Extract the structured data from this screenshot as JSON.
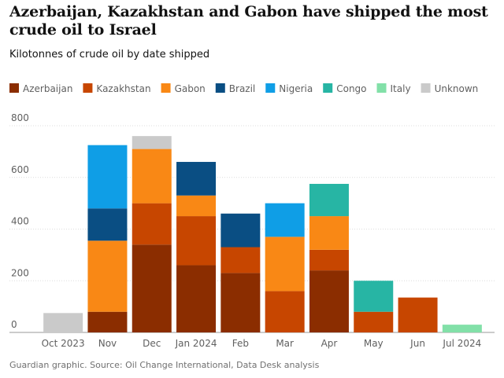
{
  "title": "Azerbaijan, Kazakhstan and Gabon have shipped the most crude oil to Israel",
  "subtitle": "Kilotonnes of crude oil by date shipped",
  "footer": "Guardian graphic. Source: Oil Change International, Data Desk analysis",
  "chart_data": {
    "type": "bar",
    "stacked": true,
    "categories": [
      "Oct 2023",
      "Nov",
      "Dec",
      "Jan 2024",
      "Feb",
      "Mar",
      "Apr",
      "May",
      "Jun",
      "Jul 2024"
    ],
    "ylim": [
      0,
      800
    ],
    "yticks": [
      0,
      200,
      400,
      600,
      800
    ],
    "grid": true,
    "legend_position": "top",
    "series": [
      {
        "name": "Azerbaijan",
        "color": "#8b2d00",
        "values": [
          0,
          80,
          340,
          260,
          230,
          0,
          240,
          0,
          0,
          0
        ]
      },
      {
        "name": "Kazakhstan",
        "color": "#c74600",
        "values": [
          0,
          0,
          160,
          190,
          100,
          160,
          80,
          80,
          135,
          0
        ]
      },
      {
        "name": "Gabon",
        "color": "#f98815",
        "values": [
          0,
          275,
          210,
          80,
          0,
          210,
          130,
          0,
          0,
          0
        ]
      },
      {
        "name": "Brazil",
        "color": "#0a4e83",
        "values": [
          0,
          125,
          0,
          130,
          130,
          0,
          0,
          0,
          0,
          0
        ]
      },
      {
        "name": "Nigeria",
        "color": "#0f9ee6",
        "values": [
          0,
          245,
          0,
          0,
          0,
          130,
          0,
          0,
          0,
          0
        ]
      },
      {
        "name": "Congo",
        "color": "#27b5a4",
        "values": [
          0,
          0,
          0,
          0,
          0,
          0,
          125,
          120,
          0,
          0
        ]
      },
      {
        "name": "Italy",
        "color": "#82e0a8",
        "values": [
          0,
          0,
          0,
          0,
          0,
          0,
          0,
          0,
          0,
          30
        ]
      },
      {
        "name": "Unknown",
        "color": "#cacaca",
        "values": [
          75,
          0,
          50,
          0,
          0,
          0,
          0,
          0,
          0,
          0
        ]
      }
    ]
  }
}
